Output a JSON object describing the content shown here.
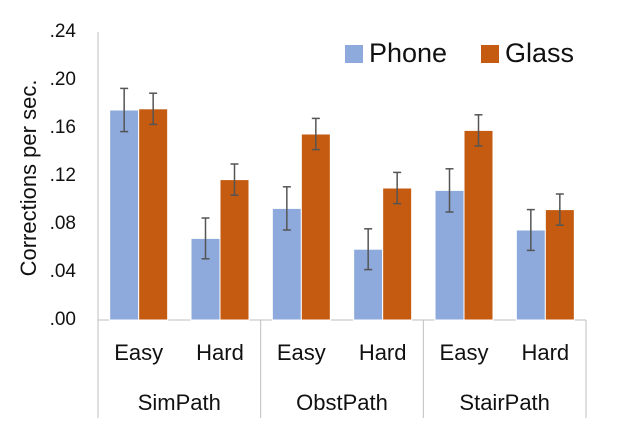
{
  "chart_data": {
    "type": "bar",
    "ylabel": "Corrections per sec.",
    "xlabel": "",
    "ylim": [
      0,
      0.24
    ],
    "yticks": [
      0,
      0.04,
      0.08,
      0.12,
      0.16,
      0.2,
      0.24
    ],
    "ytick_labels": [
      ".00",
      ".04",
      ".08",
      ".12",
      ".16",
      ".20",
      ".24"
    ],
    "grid": false,
    "legend_position": "top-right",
    "groups": [
      "SimPath",
      "ObstPath",
      "StairPath"
    ],
    "categories": [
      "Easy",
      "Hard",
      "Easy",
      "Hard",
      "Easy",
      "Hard"
    ],
    "series": [
      {
        "name": "Phone",
        "color": "#8EA9DB",
        "values": [
          0.175,
          0.068,
          0.093,
          0.059,
          0.108,
          0.075
        ],
        "errors": [
          0.018,
          0.017,
          0.018,
          0.017,
          0.018,
          0.017
        ]
      },
      {
        "name": "Glass",
        "color": "#C55A11",
        "values": [
          0.176,
          0.117,
          0.155,
          0.11,
          0.158,
          0.092
        ],
        "errors": [
          0.013,
          0.013,
          0.013,
          0.013,
          0.013,
          0.013
        ]
      }
    ]
  }
}
